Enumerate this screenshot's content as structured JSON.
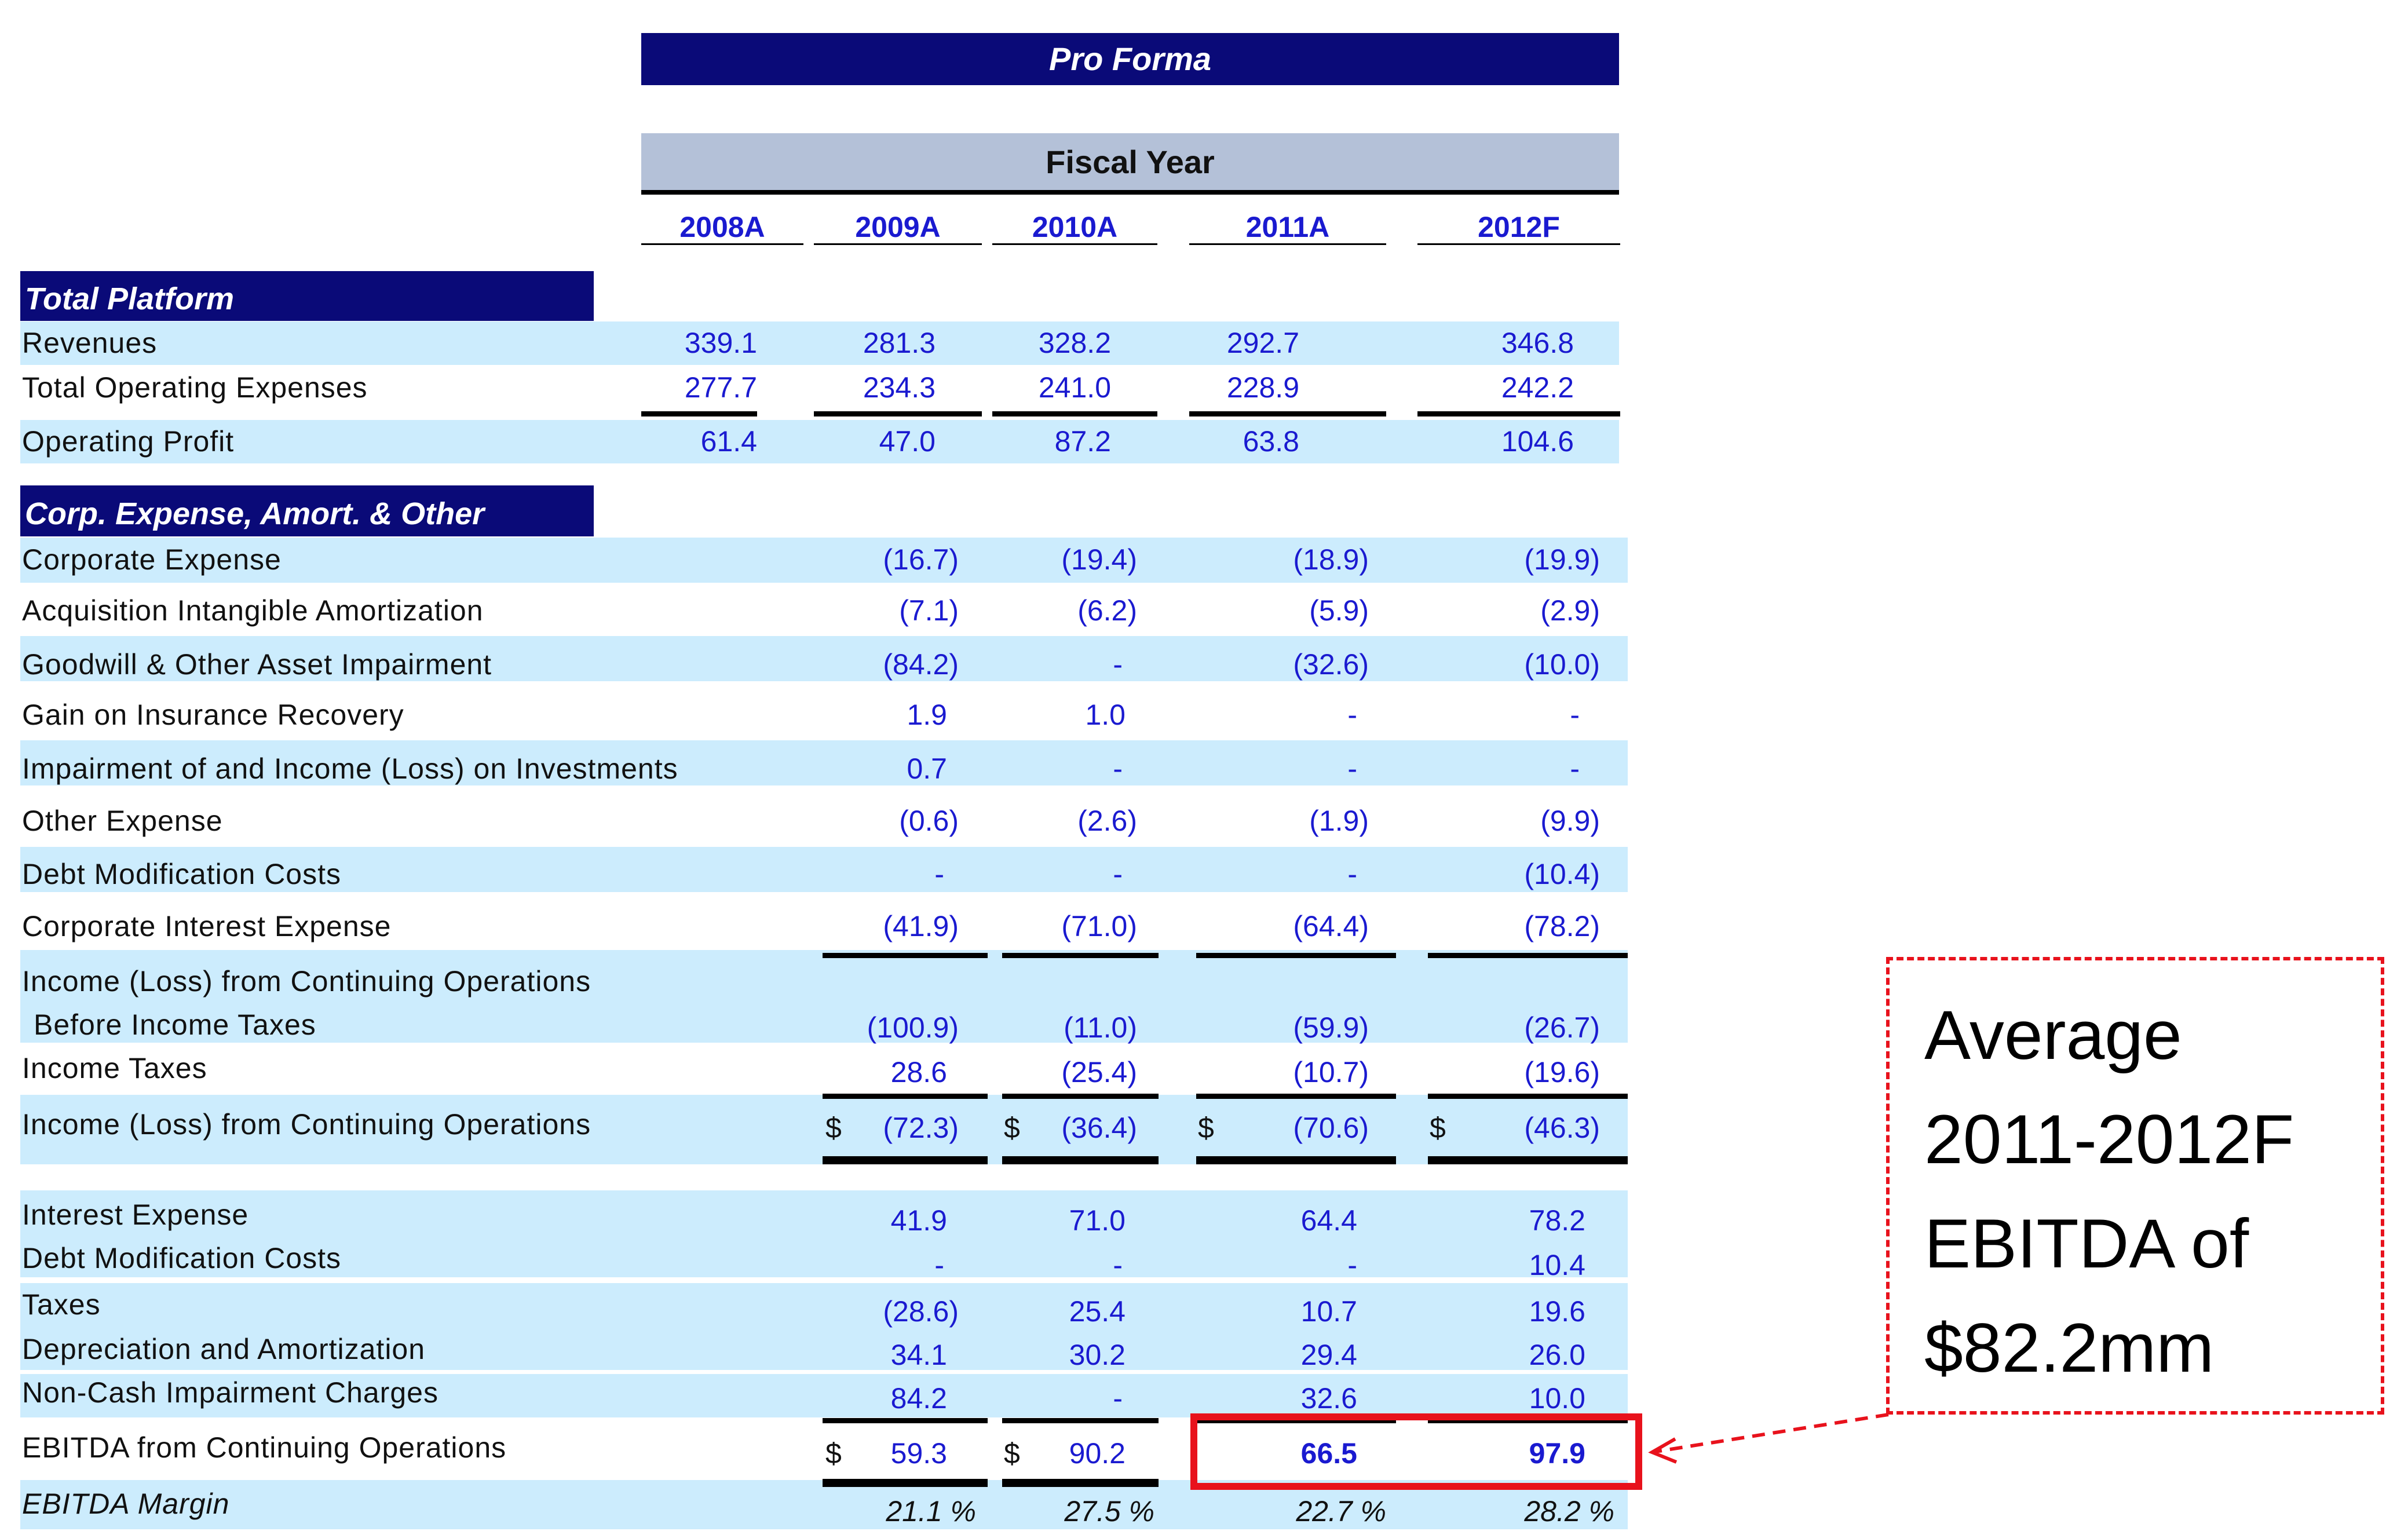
{
  "header": {
    "pro_forma": "Pro Forma",
    "fiscal_year": "Fiscal Year"
  },
  "years": [
    "2008A",
    "2009A",
    "2010A",
    "2011A",
    "2012F"
  ],
  "sections": {
    "total_platform": "Total Platform",
    "corp_expense": "Corp. Expense, Amort. & Other"
  },
  "rows": {
    "revenues": {
      "label": "Revenues",
      "v": [
        "339.1",
        "281.3",
        "328.2",
        "292.7",
        "346.8"
      ]
    },
    "total_opex": {
      "label": "Total Operating Expenses",
      "v": [
        "277.7",
        "234.3",
        "241.0",
        "228.9",
        "242.2"
      ]
    },
    "operating_profit": {
      "label": "Operating Profit",
      "v": [
        "61.4",
        "47.0",
        "87.2",
        "63.8",
        "104.6"
      ]
    },
    "corporate_expense": {
      "label": "Corporate Expense",
      "v": [
        "(16.7)",
        "(19.4)",
        "(18.9)",
        "(19.9)"
      ]
    },
    "acq_amort": {
      "label": "Acquisition Intangible Amortization",
      "v": [
        "(7.1)",
        "(6.2)",
        "(5.9)",
        "(2.9)"
      ]
    },
    "goodwill": {
      "label": "Goodwill & Other Asset Impairment",
      "v": [
        "(84.2)",
        "-",
        "(32.6)",
        "(10.0)"
      ]
    },
    "gain_insurance": {
      "label": "Gain on Insurance Recovery",
      "v": [
        "1.9",
        "1.0",
        "-",
        "-"
      ]
    },
    "impairment_inv": {
      "label": "Impairment of and Income (Loss) on Investments",
      "v": [
        "0.7",
        "-",
        "-",
        "-"
      ]
    },
    "other_expense": {
      "label": "Other Expense",
      "v": [
        "(0.6)",
        "(2.6)",
        "(1.9)",
        "(9.9)"
      ]
    },
    "debt_mod_1": {
      "label": "Debt Modification Costs",
      "v": [
        "-",
        "-",
        "-",
        "(10.4)"
      ]
    },
    "corp_interest": {
      "label": "Corporate Interest Expense",
      "v": [
        "(41.9)",
        "(71.0)",
        "(64.4)",
        "(78.2)"
      ]
    },
    "income_before_tax": {
      "label1": "Income (Loss) from Continuing Operations",
      "label2": "Before Income Taxes",
      "v": [
        "(100.9)",
        "(11.0)",
        "(59.9)",
        "(26.7)"
      ]
    },
    "income_taxes": {
      "label": "Income Taxes",
      "v": [
        "28.6",
        "(25.4)",
        "(10.7)",
        "(19.6)"
      ]
    },
    "income_cont_ops": {
      "label": "Income (Loss) from Continuing Operations",
      "cur": "$",
      "v": [
        "(72.3)",
        "(36.4)",
        "(70.6)",
        "(46.3)"
      ]
    },
    "interest_expense": {
      "label": "Interest Expense",
      "v": [
        "41.9",
        "71.0",
        "64.4",
        "78.2"
      ]
    },
    "debt_mod_2": {
      "label": "Debt Modification Costs",
      "v": [
        "-",
        "-",
        "-",
        "10.4"
      ]
    },
    "taxes": {
      "label": "Taxes",
      "v": [
        "(28.6)",
        "25.4",
        "10.7",
        "19.6"
      ]
    },
    "dep_amort": {
      "label": "Depreciation and Amortization",
      "v": [
        "34.1",
        "30.2",
        "29.4",
        "26.0"
      ]
    },
    "non_cash": {
      "label": "Non-Cash Impairment Charges",
      "v": [
        "84.2",
        "-",
        "32.6",
        "10.0"
      ]
    },
    "ebitda": {
      "label": "EBITDA from Continuing Operations",
      "cur": "$",
      "v": [
        "59.3",
        "90.2",
        "66.5",
        "97.9"
      ]
    },
    "ebitda_margin": {
      "label": "EBITDA Margin",
      "v": [
        "21.1 %",
        "27.5 %",
        "22.7 %",
        "28.2 %"
      ]
    }
  },
  "callout": {
    "line1": "Average",
    "line2": "2011-2012F",
    "line3": "EBITDA of",
    "line4": "$82.2mm"
  },
  "colors": {
    "navy": "#0a0a78",
    "value_blue": "#1a1ad0",
    "row_blue": "#ccecfd",
    "highlight_red": "#e8121c"
  }
}
